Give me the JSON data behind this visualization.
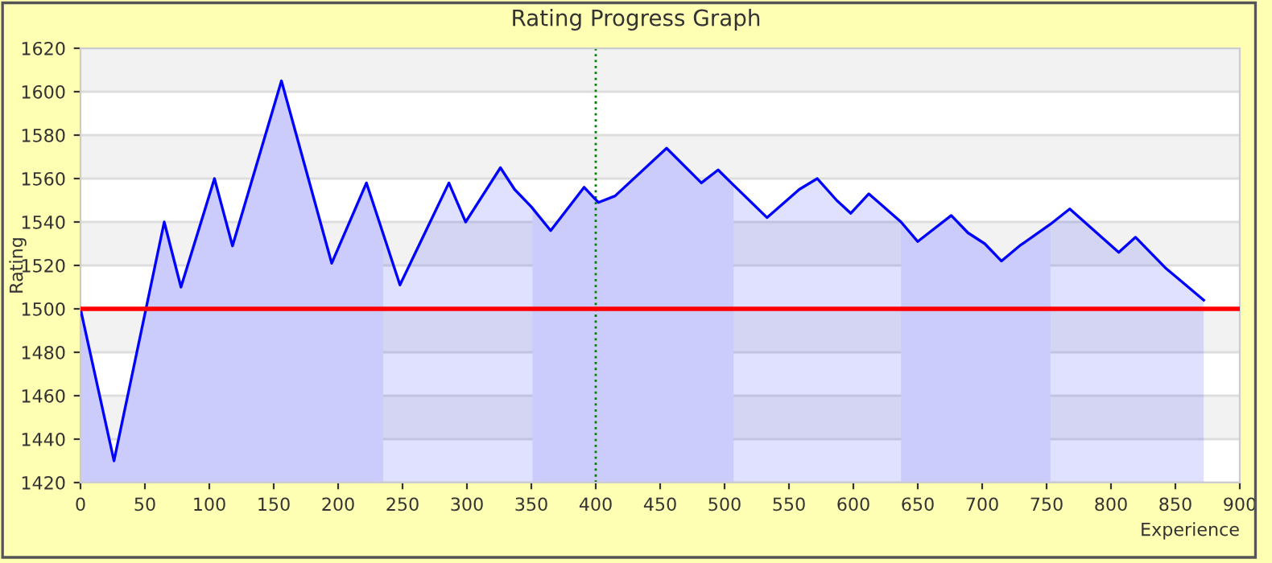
{
  "chart_data": {
    "type": "area",
    "title": "Rating Progress Graph",
    "xlabel": "Experience",
    "ylabel": "Rating",
    "xlim": [
      0,
      900
    ],
    "xticks": [
      0,
      50,
      100,
      150,
      200,
      250,
      300,
      350,
      400,
      450,
      500,
      550,
      600,
      650,
      700,
      750,
      800,
      850,
      900
    ],
    "ylim": [
      1420,
      1620
    ],
    "yticks": [
      1420,
      1440,
      1460,
      1480,
      1500,
      1520,
      1540,
      1560,
      1580,
      1600,
      1620
    ],
    "grid": "y",
    "marker": "none",
    "line_style": "solid",
    "series": [
      {
        "color": "#0000ff",
        "x": [
          0,
          26,
          65,
          78,
          104,
          118,
          156,
          195,
          222,
          248,
          286,
          299,
          326,
          337,
          350,
          365,
          391,
          402,
          415,
          455,
          482,
          495,
          507,
          533,
          558,
          572,
          587,
          598,
          612,
          637,
          650,
          676,
          689,
          702,
          715,
          729,
          753,
          768,
          806,
          819,
          842,
          858,
          872
        ],
        "values": [
          1500,
          1430,
          1540,
          1510,
          1560,
          1529,
          1605,
          1521,
          1558,
          1511,
          1558,
          1540,
          1565,
          1555,
          1547,
          1536,
          1556,
          1549,
          1552,
          1574,
          1558,
          1564,
          1557,
          1542,
          1555,
          1560,
          1550,
          1544,
          1553,
          1540,
          1531,
          1543,
          1535,
          1530,
          1522,
          1529,
          1539,
          1546,
          1526,
          1533,
          1519,
          1511,
          1504
        ]
      }
    ],
    "bands": [
      {
        "axis": "x",
        "from": 0,
        "to": 235,
        "color": "#e8e8fc"
      },
      {
        "axis": "x",
        "from": 351,
        "to": 507,
        "color": "#e8e8fc"
      },
      {
        "axis": "x",
        "from": 637,
        "to": 753,
        "color": "#e8e8fc"
      }
    ],
    "ref_lines": [
      {
        "axis": "y",
        "value": 1500,
        "color": "#ff0000",
        "line_style": "solid"
      },
      {
        "axis": "x",
        "value": 400,
        "color": "#008000",
        "line_style": "dotted"
      }
    ]
  }
}
